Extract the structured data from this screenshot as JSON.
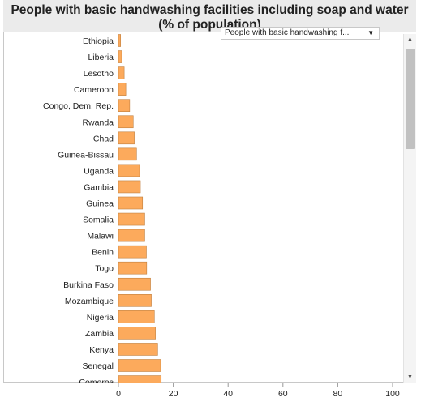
{
  "title": "People with basic handwashing facilities including soap and water (% of population)",
  "dropdown": {
    "selected": "People with basic handwashing f...",
    "caret": "▼"
  },
  "scrollbar": {
    "up": "▲",
    "down": "▼"
  },
  "chart_data": {
    "type": "bar",
    "orientation": "horizontal",
    "bar_color": "#fcaa5c",
    "bar_edge_color": "#c08040",
    "xlim": [
      0,
      100
    ],
    "x_ticks": [
      "0",
      "20",
      "40",
      "60",
      "80",
      "100"
    ],
    "categories": [
      "Ethiopia",
      "Liberia",
      "Lesotho",
      "Cameroon",
      "Congo, Dem. Rep.",
      "Rwanda",
      "Chad",
      "Guinea-Bissau",
      "Uganda",
      "Gambia",
      "Guinea",
      "Somalia",
      "Malawi",
      "Benin",
      "Togo",
      "Burkina Faso",
      "Mozambique",
      "Nigeria",
      "Zambia",
      "Kenya",
      "Senegal",
      "Comoros"
    ],
    "values": [
      0.8,
      1.2,
      2.1,
      2.7,
      4.1,
      5.4,
      5.8,
      6.6,
      7.7,
      8.0,
      8.8,
      9.6,
      9.6,
      10.2,
      10.3,
      11.7,
      12.0,
      13.1,
      13.5,
      14.3,
      15.4,
      15.6
    ]
  }
}
